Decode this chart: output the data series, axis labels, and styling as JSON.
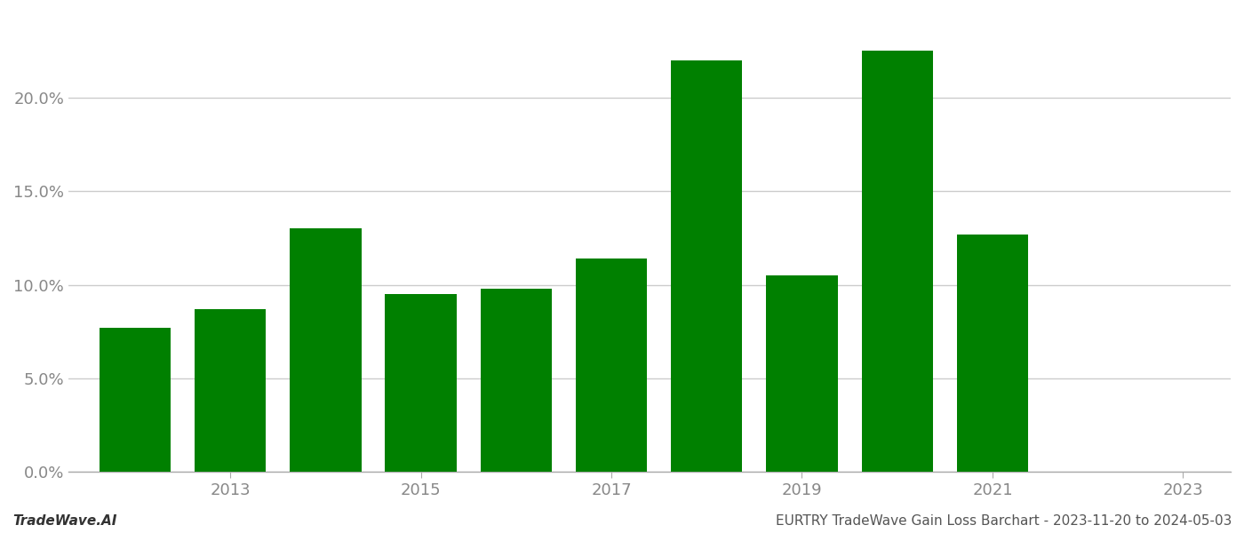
{
  "years": [
    2012,
    2013,
    2014,
    2015,
    2016,
    2017,
    2018,
    2019,
    2020,
    2021,
    2022
  ],
  "values": [
    0.077,
    0.087,
    0.13,
    0.095,
    0.098,
    0.114,
    0.22,
    0.105,
    0.225,
    0.127,
    0.0
  ],
  "bar_color": "#008000",
  "xtick_positions": [
    2013,
    2015,
    2017,
    2019,
    2021,
    2023
  ],
  "xtick_labels": [
    "2013",
    "2015",
    "2017",
    "2019",
    "2021",
    "2023"
  ],
  "ytick_values": [
    0.0,
    0.05,
    0.1,
    0.15,
    0.2
  ],
  "ytick_labels": [
    "0.0%",
    "5.0%",
    "10.0%",
    "15.0%",
    "20.0%"
  ],
  "ylim": [
    0,
    0.245
  ],
  "xlim": [
    2011.3,
    2023.5
  ],
  "background_color": "#ffffff",
  "grid_color": "#cccccc",
  "footer_left": "TradeWave.AI",
  "footer_right": "EURTRY TradeWave Gain Loss Barchart - 2023-11-20 to 2024-05-03",
  "footer_fontsize": 11,
  "tick_fontsize": 13,
  "bar_width": 0.75
}
